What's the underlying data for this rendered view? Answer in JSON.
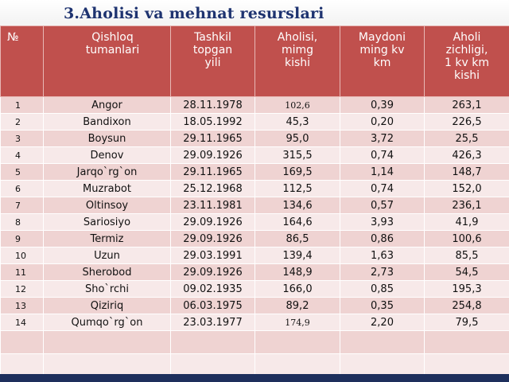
{
  "title": "3.Aholisi va mehnat resurslari",
  "colors": {
    "header": "#c0504d",
    "row": "#efd3d2",
    "row_alt": "#f7e9e9",
    "title": "#1e3370"
  },
  "table": {
    "headers": [
      "№",
      "Qishloq\ntumanlari",
      "Tashkil\ntopgan\nyili",
      "Aholisi,\nmimg\nkishi",
      "Maydoni\nming  kv\nkm",
      "Aholi\nzichligi,\n1  kv  km\nkishi"
    ],
    "rows": [
      [
        "1",
        "Angor",
        "28.11.1978",
        "102,6",
        "0,39",
        "263,1"
      ],
      [
        "2",
        "Bandixon",
        "18.05.1992",
        "45,3",
        "0,20",
        "226,5"
      ],
      [
        "3",
        "Boysun",
        "29.11.1965",
        "95,0",
        "3,72",
        "25,5"
      ],
      [
        "4",
        "Denov",
        "29.09.1926",
        "315,5",
        "0,74",
        "426,3"
      ],
      [
        "5",
        "Jarqo`rg`on",
        "29.11.1965",
        "169,5",
        "1,14",
        "148,7"
      ],
      [
        "6",
        "Muzrabot",
        "25.12.1968",
        "112,5",
        "0,74",
        "152,0"
      ],
      [
        "7",
        "Oltinsoy",
        "23.11.1981",
        "134,6",
        "0,57",
        "236,1"
      ],
      [
        "8",
        "Sariosiyo",
        "29.09.1926",
        "164,6",
        "3,93",
        "41,9"
      ],
      [
        "9",
        "Termiz",
        "29.09.1926",
        "86,5",
        "0,86",
        "100,6"
      ],
      [
        "10",
        "Uzun",
        "29.03.1991",
        "139,4",
        "1,63",
        "85,5"
      ],
      [
        "11",
        "Sherobod",
        "29.09.1926",
        "148,9",
        "2,73",
        "54,5"
      ],
      [
        "12",
        "Sho`rchi",
        "09.02.1935",
        "166,0",
        "0,85",
        "195,3"
      ],
      [
        "13",
        "Qiziriq",
        "06.03.1975",
        "89,2",
        "0,35",
        "254,8"
      ],
      [
        "14",
        "Qumqo`rg`on",
        "23.03.1977",
        "174,9",
        "2,20",
        "79,5"
      ]
    ]
  }
}
